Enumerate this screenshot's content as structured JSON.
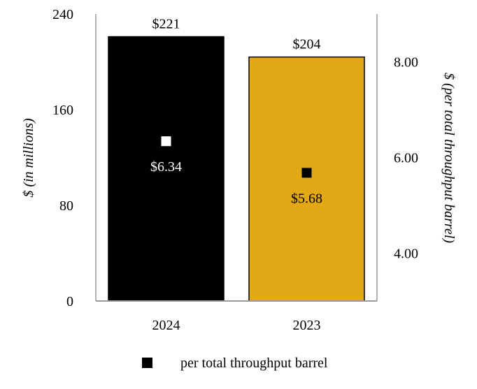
{
  "chart_data": {
    "type": "bar",
    "categories": [
      "2024",
      "2023"
    ],
    "series": [
      {
        "values": [
          221,
          204
        ],
        "axis": "left",
        "kind": "bar",
        "data_labels": [
          "$221",
          "$204"
        ],
        "colors": [
          "#000000",
          "#E3A815"
        ]
      },
      {
        "name": "per total throughput barrel",
        "values": [
          6.34,
          5.68
        ],
        "axis": "right",
        "kind": "marker",
        "data_labels": [
          "$6.34",
          "$5.68"
        ],
        "colors": [
          "#FFFFFF",
          "#000000"
        ]
      }
    ],
    "ylabel": "$ (in millions)",
    "ylim": [
      0,
      240
    ],
    "yticks": [
      "0",
      "80",
      "160",
      "240"
    ],
    "y2label": "$ (per total throughput barrel)",
    "y2lim": [
      3,
      9
    ],
    "y2ticks": [
      "4.00",
      "6.00",
      "8.00"
    ],
    "grid": false,
    "legend_position": "bottom",
    "axis_color": "#999999"
  }
}
